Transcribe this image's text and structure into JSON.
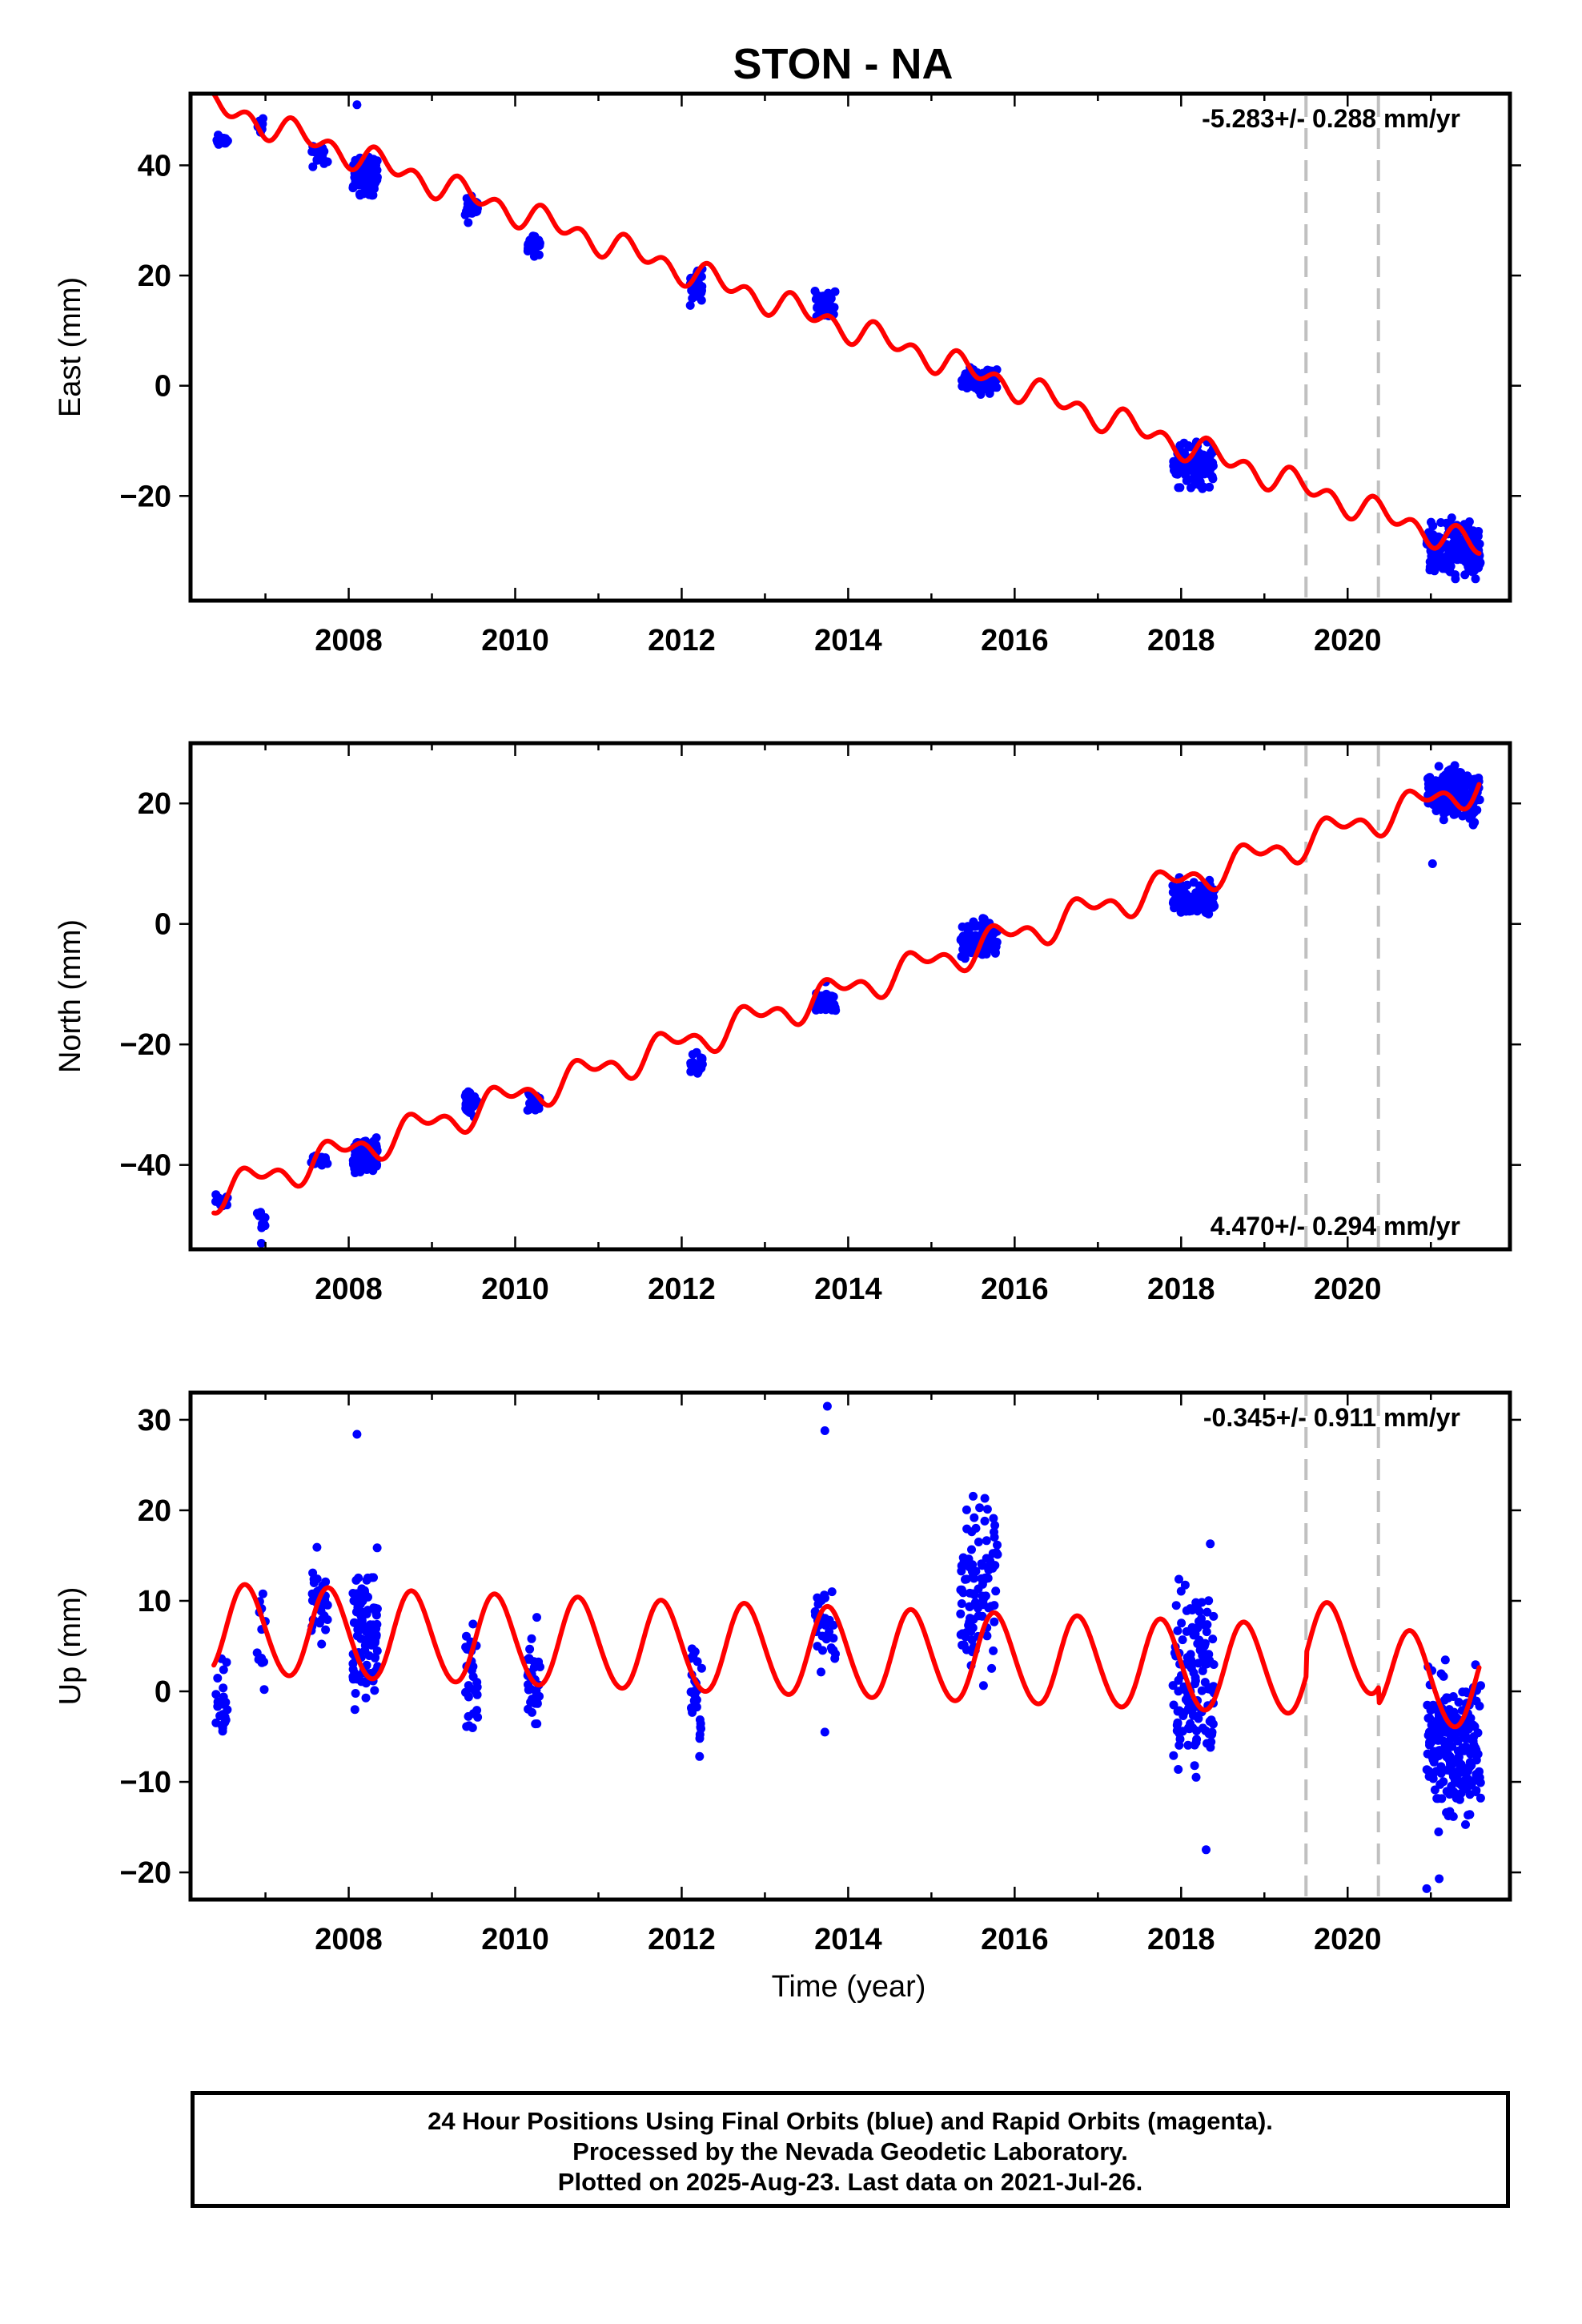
{
  "title": "STON - NA",
  "xlabel": "Time (year)",
  "footer": {
    "line1": "24 Hour Positions Using Final Orbits (blue) and Rapid Orbits (magenta).",
    "line2": "Processed by the Nevada Geodetic Laboratory.",
    "line3": "Plotted on 2025-Aug-23. Last data on 2021-Jul-26."
  },
  "colors": {
    "observations": "#0000ff",
    "model": "#ff0000",
    "events": "#c0c0c0",
    "frame": "#000000"
  },
  "chart_data": [
    {
      "type": "scatter",
      "ylabel": "East (mm)",
      "rate_label": "-5.283+/- 0.288 mm/yr",
      "rate_position": "top-right",
      "xlim": [
        2006.1,
        2021.95
      ],
      "ylim": [
        -39,
        53
      ],
      "xticks": [
        2008,
        2010,
        2012,
        2014,
        2016,
        2018,
        2020
      ],
      "yticks": [
        -20,
        0,
        20,
        40
      ],
      "grid": false,
      "event_lines": [
        2019.5,
        2020.37
      ],
      "series": [
        {
          "kind": "observations",
          "clusters": [
            {
              "x": [
                2006.4,
                2006.55
              ],
              "y": [
                43,
                46
              ],
              "n": 22
            },
            {
              "x": [
                2006.9,
                2007.0
              ],
              "y": [
                45,
                49
              ],
              "n": 10
            },
            {
              "x": [
                2007.55,
                2007.75
              ],
              "y": [
                39,
                45
              ],
              "n": 24
            },
            {
              "x": [
                2008.05,
                2008.35
              ],
              "y": [
                33,
                43
              ],
              "n": 90
            },
            {
              "x": [
                2009.4,
                2009.55
              ],
              "y": [
                29,
                35
              ],
              "n": 32
            },
            {
              "x": [
                2010.15,
                2010.3
              ],
              "y": [
                23,
                29
              ],
              "n": 32
            },
            {
              "x": [
                2012.1,
                2012.25
              ],
              "y": [
                13,
                23
              ],
              "n": 26
            },
            {
              "x": [
                2013.6,
                2013.85
              ],
              "y": [
                11,
                19
              ],
              "n": 34
            },
            {
              "x": [
                2015.35,
                2015.8
              ],
              "y": [
                -2,
                4
              ],
              "n": 90
            },
            {
              "x": [
                2017.9,
                2018.4
              ],
              "y": [
                -20,
                -9
              ],
              "n": 110
            },
            {
              "x": [
                2020.95,
                2021.6
              ],
              "y": [
                -37,
                -23
              ],
              "n": 180
            }
          ],
          "outliers": [
            {
              "x": 2008.1,
              "y": 51
            }
          ]
        },
        {
          "kind": "model",
          "x_range": [
            2006.38,
            2021.58
          ],
          "ref_epoch": 2014.0,
          "offset": 10.5,
          "rate": -5.283,
          "annual_cos": -1.2,
          "annual_sin": 0.6,
          "semiannual_cos": -1.5,
          "semiannual_sin": -1.0,
          "steps": [
            {
              "epoch": 2019.5,
              "size": 0
            },
            {
              "epoch": 2020.37,
              "size": 0
            }
          ],
          "postseismic": {
            "epoch": 2020.37,
            "amplitude": 0
          }
        }
      ]
    },
    {
      "type": "scatter",
      "ylabel": "North (mm)",
      "rate_label": "4.470+/- 0.294 mm/yr",
      "rate_position": "bottom-right",
      "xlim": [
        2006.1,
        2021.95
      ],
      "ylim": [
        -54,
        30
      ],
      "xticks": [
        2008,
        2010,
        2012,
        2014,
        2016,
        2018,
        2020
      ],
      "yticks": [
        -40,
        -20,
        0,
        20
      ],
      "grid": false,
      "event_lines": [
        2019.5,
        2020.37
      ],
      "series": [
        {
          "kind": "observations",
          "clusters": [
            {
              "x": [
                2006.4,
                2006.55
              ],
              "y": [
                -48,
                -44
              ],
              "n": 22
            },
            {
              "x": [
                2006.9,
                2007.0
              ],
              "y": [
                -52,
                -47
              ],
              "n": 10
            },
            {
              "x": [
                2007.55,
                2007.75
              ],
              "y": [
                -41,
                -38
              ],
              "n": 24
            },
            {
              "x": [
                2008.05,
                2008.35
              ],
              "y": [
                -43,
                -34
              ],
              "n": 90
            },
            {
              "x": [
                2009.4,
                2009.55
              ],
              "y": [
                -33,
                -27
              ],
              "n": 32
            },
            {
              "x": [
                2010.15,
                2010.3
              ],
              "y": [
                -32,
                -27
              ],
              "n": 32
            },
            {
              "x": [
                2012.1,
                2012.25
              ],
              "y": [
                -26,
                -21
              ],
              "n": 26
            },
            {
              "x": [
                2013.6,
                2013.85
              ],
              "y": [
                -17,
                -9
              ],
              "n": 34
            },
            {
              "x": [
                2015.35,
                2015.8
              ],
              "y": [
                -7,
                2
              ],
              "n": 90
            },
            {
              "x": [
                2017.9,
                2018.4
              ],
              "y": [
                0,
                9
              ],
              "n": 110
            },
            {
              "x": [
                2020.95,
                2021.6
              ],
              "y": [
                15,
                28
              ],
              "n": 180
            }
          ],
          "outliers": [
            {
              "x": 2006.95,
              "y": -53
            },
            {
              "x": 2021.02,
              "y": 10
            }
          ]
        },
        {
          "kind": "model",
          "x_range": [
            2006.38,
            2021.58
          ],
          "ref_epoch": 2014.0,
          "offset": -10.8,
          "rate": 4.47,
          "annual_cos": 1.2,
          "annual_sin": -1.7,
          "semiannual_cos": -1.0,
          "semiannual_sin": 1.0,
          "steps": [
            {
              "epoch": 2019.5,
              "size": 0
            },
            {
              "epoch": 2020.37,
              "size": 0
            }
          ],
          "postseismic": {
            "epoch": 2020.37,
            "amplitude": 0
          }
        }
      ]
    },
    {
      "type": "scatter",
      "ylabel": "Up (mm)",
      "rate_label": "-0.345+/- 0.911 mm/yr",
      "rate_position": "top-right",
      "xlim": [
        2006.1,
        2021.95
      ],
      "ylim": [
        -23,
        33
      ],
      "xticks": [
        2008,
        2010,
        2012,
        2014,
        2016,
        2018,
        2020
      ],
      "yticks": [
        -20,
        -10,
        0,
        10,
        20,
        30
      ],
      "grid": false,
      "event_lines": [
        2019.5,
        2020.37
      ],
      "series": [
        {
          "kind": "observations",
          "clusters": [
            {
              "x": [
                2006.4,
                2006.55
              ],
              "y": [
                -9,
                5
              ],
              "n": 22
            },
            {
              "x": [
                2006.9,
                2007.0
              ],
              "y": [
                -1,
                17
              ],
              "n": 12
            },
            {
              "x": [
                2007.55,
                2007.75
              ],
              "y": [
                1,
                18
              ],
              "n": 30
            },
            {
              "x": [
                2008.05,
                2008.35
              ],
              "y": [
                -5,
                18
              ],
              "n": 100
            },
            {
              "x": [
                2009.4,
                2009.55
              ],
              "y": [
                -6,
                9
              ],
              "n": 32
            },
            {
              "x": [
                2010.15,
                2010.3
              ],
              "y": [
                -7,
                10
              ],
              "n": 32
            },
            {
              "x": [
                2012.1,
                2012.25
              ],
              "y": [
                -11,
                7
              ],
              "n": 28
            },
            {
              "x": [
                2013.6,
                2013.85
              ],
              "y": [
                0,
                15
              ],
              "n": 34
            },
            {
              "x": [
                2015.35,
                2015.8
              ],
              "y": [
                -1,
                25
              ],
              "n": 100
            },
            {
              "x": [
                2017.9,
                2018.4
              ],
              "y": [
                -13,
                17
              ],
              "n": 130
            },
            {
              "x": [
                2020.95,
                2021.6
              ],
              "y": [
                -18,
                5
              ],
              "n": 220
            }
          ],
          "outliers": [
            {
              "x": 2008.1,
              "y": 28.4
            },
            {
              "x": 2013.75,
              "y": 31.5
            },
            {
              "x": 2013.72,
              "y": 28.8
            },
            {
              "x": 2013.72,
              "y": -4.5
            },
            {
              "x": 2018.3,
              "y": -17.5
            },
            {
              "x": 2018.35,
              "y": 16.3
            },
            {
              "x": 2020.95,
              "y": -21.8
            },
            {
              "x": 2021.1,
              "y": -20.7
            }
          ]
        },
        {
          "kind": "model",
          "x_range": [
            2006.38,
            2021.58
          ],
          "ref_epoch": 2014.0,
          "offset": 4.2,
          "rate": -0.345,
          "annual_cos": 0.5,
          "annual_sin": -4.9,
          "semiannual_cos": -0.2,
          "semiannual_sin": 0.2,
          "steps": [
            {
              "epoch": 2019.5,
              "size": 2.5
            },
            {
              "epoch": 2020.37,
              "size": -1.8
            }
          ],
          "postseismic": {
            "epoch": 2020.37,
            "amplitude": -1.8
          }
        }
      ]
    }
  ]
}
